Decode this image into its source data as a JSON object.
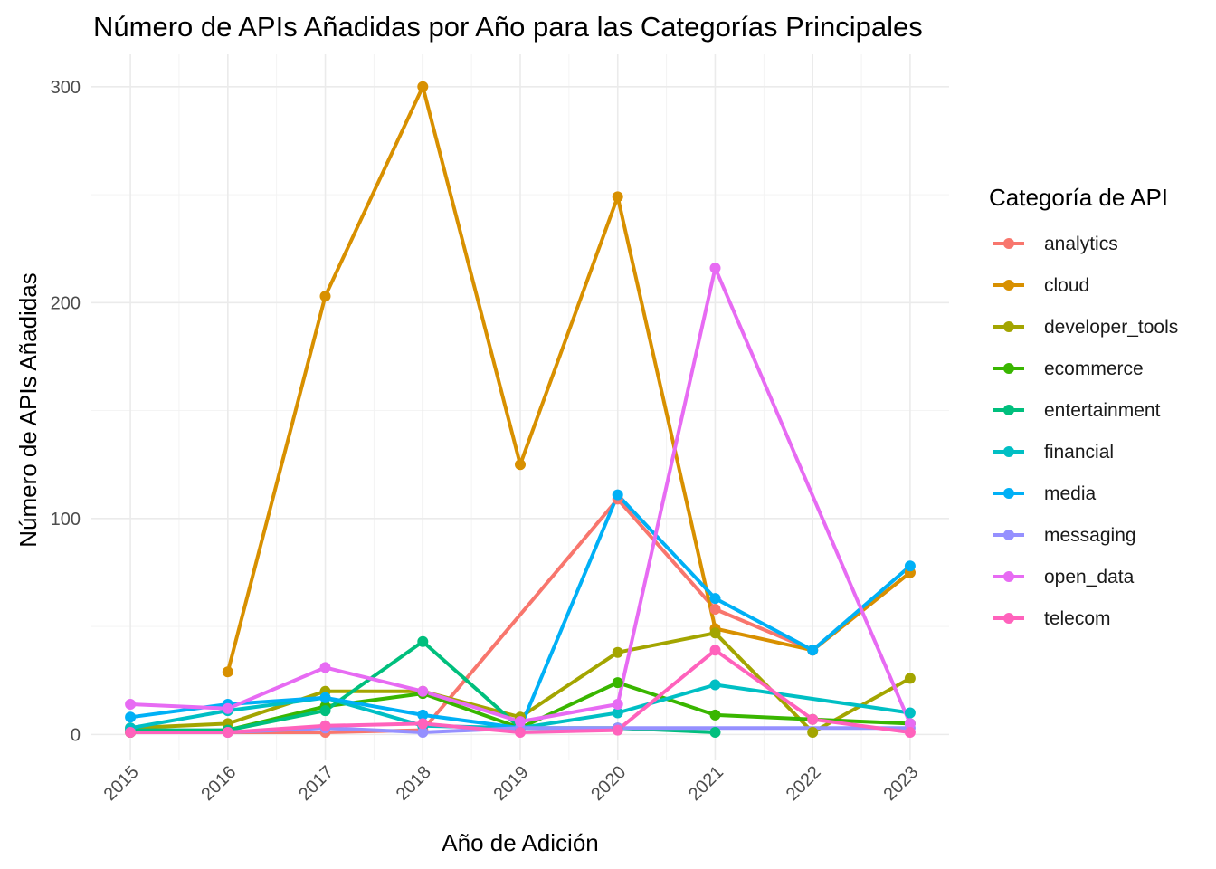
{
  "chart_data": {
    "type": "line",
    "title": "Número de APIs Añadidas por Año para las Categorías Principales",
    "xlabel": "Año de Adición",
    "ylabel": "Número de APIs Añadidas",
    "legend_title": "Categoría de API",
    "legend_position": "right",
    "grid": true,
    "x": [
      2015,
      2016,
      2017,
      2018,
      2019,
      2020,
      2021,
      2022,
      2023
    ],
    "x_tick_labels": [
      "2015",
      "2016",
      "2017",
      "2018",
      "2019",
      "2020",
      "2021",
      "2022",
      "2023"
    ],
    "xlim": [
      2014.6,
      2023.4
    ],
    "ylim": [
      -12,
      315
    ],
    "y_ticks": [
      0,
      100,
      200,
      300
    ],
    "y_tick_labels": [
      "0",
      "100",
      "200",
      "300"
    ],
    "series": [
      {
        "name": "analytics",
        "color": "#F8766D",
        "points": [
          [
            2015,
            1
          ],
          [
            2016,
            1
          ],
          [
            2017,
            1
          ],
          [
            2018,
            2
          ],
          [
            2020,
            109
          ],
          [
            2021,
            58
          ],
          [
            2022,
            39
          ],
          [
            2023,
            75
          ]
        ]
      },
      {
        "name": "cloud",
        "color": "#D89000",
        "points": [
          [
            2016,
            29
          ],
          [
            2017,
            203
          ],
          [
            2018,
            300
          ],
          [
            2019,
            125
          ],
          [
            2020,
            249
          ],
          [
            2021,
            49
          ],
          [
            2022,
            39
          ],
          [
            2023,
            75
          ]
        ]
      },
      {
        "name": "developer_tools",
        "color": "#A3A500",
        "points": [
          [
            2015,
            3
          ],
          [
            2016,
            5
          ],
          [
            2017,
            20
          ],
          [
            2018,
            20
          ],
          [
            2019,
            8
          ],
          [
            2020,
            38
          ],
          [
            2021,
            47
          ],
          [
            2022,
            1
          ],
          [
            2023,
            26
          ]
        ]
      },
      {
        "name": "ecommerce",
        "color": "#39B600",
        "points": [
          [
            2015,
            1
          ],
          [
            2016,
            2
          ],
          [
            2017,
            13
          ],
          [
            2018,
            19
          ],
          [
            2019,
            3
          ],
          [
            2020,
            24
          ],
          [
            2021,
            9
          ],
          [
            2022,
            7
          ],
          [
            2023,
            5
          ]
        ]
      },
      {
        "name": "entertainment",
        "color": "#00BF7D",
        "points": [
          [
            2015,
            2
          ],
          [
            2016,
            2
          ],
          [
            2017,
            11
          ],
          [
            2018,
            43
          ],
          [
            2019,
            3
          ],
          [
            2020,
            3
          ],
          [
            2021,
            1
          ]
        ]
      },
      {
        "name": "financial",
        "color": "#00BFC4",
        "points": [
          [
            2015,
            3
          ],
          [
            2016,
            11
          ],
          [
            2017,
            17
          ],
          [
            2018,
            4
          ],
          [
            2019,
            3
          ],
          [
            2020,
            10
          ],
          [
            2021,
            23
          ],
          [
            2023,
            10
          ]
        ]
      },
      {
        "name": "media",
        "color": "#00B0F6",
        "points": [
          [
            2015,
            8
          ],
          [
            2016,
            14
          ],
          [
            2017,
            17
          ],
          [
            2018,
            9
          ],
          [
            2019,
            3
          ],
          [
            2020,
            111
          ],
          [
            2021,
            63
          ],
          [
            2022,
            39
          ],
          [
            2023,
            78
          ]
        ]
      },
      {
        "name": "messaging",
        "color": "#9590FF",
        "points": [
          [
            2016,
            1
          ],
          [
            2017,
            3
          ],
          [
            2018,
            1
          ],
          [
            2019,
            3
          ],
          [
            2020,
            3
          ],
          [
            2023,
            3
          ]
        ]
      },
      {
        "name": "open_data",
        "color": "#E76BF3",
        "points": [
          [
            2015,
            14
          ],
          [
            2016,
            12
          ],
          [
            2017,
            31
          ],
          [
            2018,
            20
          ],
          [
            2019,
            6
          ],
          [
            2020,
            14
          ],
          [
            2021,
            216
          ],
          [
            2023,
            5
          ]
        ]
      },
      {
        "name": "telecom",
        "color": "#FF62BC",
        "points": [
          [
            2015,
            1
          ],
          [
            2016,
            1
          ],
          [
            2017,
            4
          ],
          [
            2018,
            5
          ],
          [
            2019,
            1
          ],
          [
            2020,
            2
          ],
          [
            2021,
            39
          ],
          [
            2022,
            7
          ],
          [
            2023,
            1
          ]
        ]
      }
    ]
  }
}
